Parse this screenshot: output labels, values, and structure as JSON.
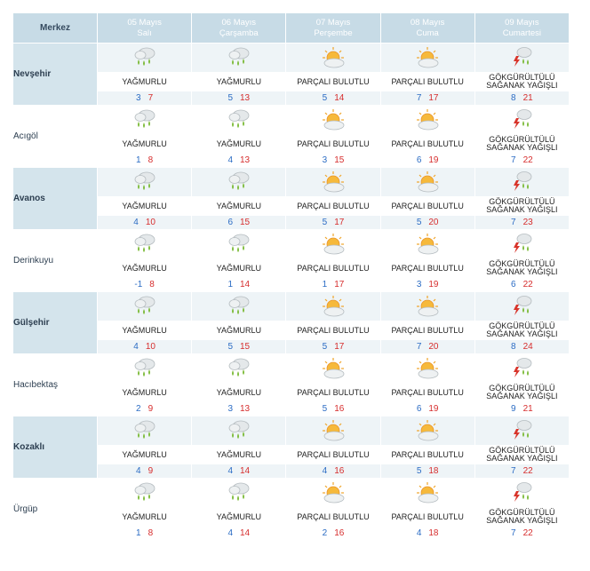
{
  "header": {
    "corner_label": "Merkez",
    "days": [
      {
        "date": "05 Mayıs",
        "weekday": "Salı"
      },
      {
        "date": "06 Mayıs",
        "weekday": "Çarşamba"
      },
      {
        "date": "07 Mayıs",
        "weekday": "Perşembe"
      },
      {
        "date": "08 Mayıs",
        "weekday": "Cuma"
      },
      {
        "date": "09 Mayıs",
        "weekday": "Cumartesi"
      }
    ]
  },
  "conditions": {
    "rain": {
      "label": "YAĞMURLU",
      "icon": "rain-cloud-icon"
    },
    "partly": {
      "label": "PARÇALI BULUTLU",
      "icon": "sun-cloud-icon"
    },
    "storm": {
      "label": "GÖKGÜRÜLTÜLÜ SAĞANAK YAĞIŞLI",
      "icon": "thunderstorm-icon"
    }
  },
  "colors": {
    "header_bg": "#c7dbe6",
    "min_temp": "#2b6cc4",
    "max_temp": "#d62d2d"
  },
  "cities": [
    {
      "name": "Nevşehir",
      "days": [
        {
          "cond": "rain",
          "min": "3",
          "max": "7"
        },
        {
          "cond": "rain",
          "min": "5",
          "max": "13"
        },
        {
          "cond": "partly",
          "min": "5",
          "max": "14"
        },
        {
          "cond": "partly",
          "min": "7",
          "max": "17"
        },
        {
          "cond": "storm",
          "min": "8",
          "max": "21"
        }
      ]
    },
    {
      "name": "Acıgöl",
      "days": [
        {
          "cond": "rain",
          "min": "1",
          "max": "8"
        },
        {
          "cond": "rain",
          "min": "4",
          "max": "13"
        },
        {
          "cond": "partly",
          "min": "3",
          "max": "15"
        },
        {
          "cond": "partly",
          "min": "6",
          "max": "19"
        },
        {
          "cond": "storm",
          "min": "7",
          "max": "22"
        }
      ]
    },
    {
      "name": "Avanos",
      "days": [
        {
          "cond": "rain",
          "min": "4",
          "max": "10"
        },
        {
          "cond": "rain",
          "min": "6",
          "max": "15"
        },
        {
          "cond": "partly",
          "min": "5",
          "max": "17"
        },
        {
          "cond": "partly",
          "min": "5",
          "max": "20"
        },
        {
          "cond": "storm",
          "min": "7",
          "max": "23"
        }
      ]
    },
    {
      "name": "Derinkuyu",
      "days": [
        {
          "cond": "rain",
          "min": "-1",
          "max": "8"
        },
        {
          "cond": "rain",
          "min": "1",
          "max": "14"
        },
        {
          "cond": "partly",
          "min": "1",
          "max": "17"
        },
        {
          "cond": "partly",
          "min": "3",
          "max": "19"
        },
        {
          "cond": "storm",
          "min": "6",
          "max": "22"
        }
      ]
    },
    {
      "name": "Gülşehir",
      "days": [
        {
          "cond": "rain",
          "min": "4",
          "max": "10"
        },
        {
          "cond": "rain",
          "min": "5",
          "max": "15"
        },
        {
          "cond": "partly",
          "min": "5",
          "max": "17"
        },
        {
          "cond": "partly",
          "min": "7",
          "max": "20"
        },
        {
          "cond": "storm",
          "min": "8",
          "max": "24"
        }
      ]
    },
    {
      "name": "Hacıbektaş",
      "days": [
        {
          "cond": "rain",
          "min": "2",
          "max": "9"
        },
        {
          "cond": "rain",
          "min": "3",
          "max": "13"
        },
        {
          "cond": "partly",
          "min": "5",
          "max": "16"
        },
        {
          "cond": "partly",
          "min": "6",
          "max": "19"
        },
        {
          "cond": "storm",
          "min": "9",
          "max": "21"
        }
      ]
    },
    {
      "name": "Kozaklı",
      "days": [
        {
          "cond": "rain",
          "min": "4",
          "max": "9"
        },
        {
          "cond": "rain",
          "min": "4",
          "max": "14"
        },
        {
          "cond": "partly",
          "min": "4",
          "max": "16"
        },
        {
          "cond": "partly",
          "min": "5",
          "max": "18"
        },
        {
          "cond": "storm",
          "min": "7",
          "max": "22"
        }
      ]
    },
    {
      "name": "Ürgüp",
      "days": [
        {
          "cond": "rain",
          "min": "1",
          "max": "8"
        },
        {
          "cond": "rain",
          "min": "4",
          "max": "14"
        },
        {
          "cond": "partly",
          "min": "2",
          "max": "16"
        },
        {
          "cond": "partly",
          "min": "4",
          "max": "18"
        },
        {
          "cond": "storm",
          "min": "7",
          "max": "22"
        }
      ]
    }
  ]
}
